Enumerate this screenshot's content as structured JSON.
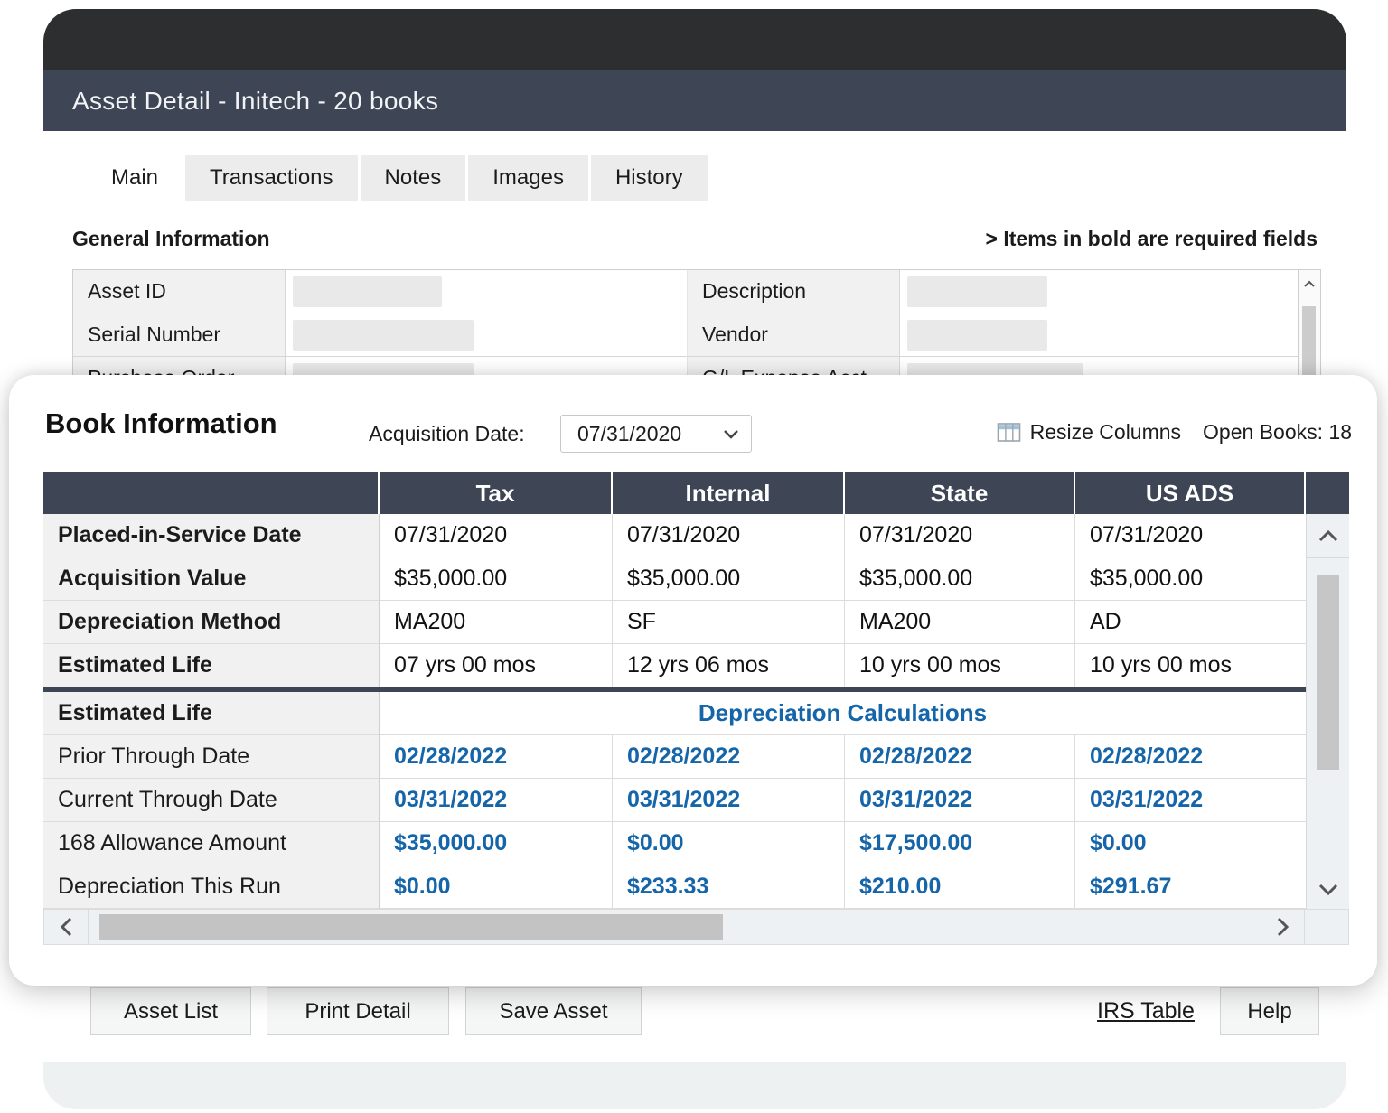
{
  "window": {
    "title": "Asset Detail - Initech - 20 books"
  },
  "tabs": [
    {
      "label": "Main",
      "active": true
    },
    {
      "label": "Transactions",
      "active": false
    },
    {
      "label": "Notes",
      "active": false
    },
    {
      "label": "Images",
      "active": false
    },
    {
      "label": "History",
      "active": false
    }
  ],
  "general": {
    "heading": "General Information",
    "required_note": "> Items in bold are required fields",
    "rows": [
      {
        "left_label": "Asset ID",
        "right_label": "Description"
      },
      {
        "left_label": "Serial Number",
        "right_label": "Vendor"
      },
      {
        "left_label": "Purchase Order",
        "right_label": "G/L Expense Acct"
      }
    ]
  },
  "book": {
    "heading": "Book Information",
    "acquisition_date_label": "Acquisition Date:",
    "acquisition_date_value": "07/31/2020",
    "resize_columns_label": "Resize Columns",
    "open_books_label": "Open Books: 18",
    "table": {
      "columns": [
        "",
        "Tax",
        "Internal",
        "State",
        "US ADS"
      ],
      "rows": [
        {
          "label": "Placed-in-Service Date",
          "bold": true,
          "blue": false,
          "values": [
            "07/31/2020",
            "07/31/2020",
            "07/31/2020",
            "07/31/2020"
          ]
        },
        {
          "label": "Acquisition Value",
          "bold": true,
          "blue": false,
          "values": [
            "$35,000.00",
            "$35,000.00",
            "$35,000.00",
            "$35,000.00"
          ]
        },
        {
          "label": "Depreciation Method",
          "bold": true,
          "blue": false,
          "values": [
            "MA200",
            "SF",
            "MA200",
            "AD"
          ]
        },
        {
          "label": "Estimated Life",
          "bold": true,
          "blue": false,
          "values": [
            "07 yrs 00 mos",
            "12 yrs 06 mos",
            "10 yrs 00 mos",
            "10 yrs 00 mos"
          ]
        },
        {
          "label": "Estimated Life",
          "bold": true,
          "separator_before": true,
          "span": "Depreciation Calculations"
        },
        {
          "label": "Prior Through Date",
          "bold": false,
          "blue": true,
          "values": [
            "02/28/2022",
            "02/28/2022",
            "02/28/2022",
            "02/28/2022"
          ]
        },
        {
          "label": "Current Through Date",
          "bold": false,
          "blue": true,
          "values": [
            "03/31/2022",
            "03/31/2022",
            "03/31/2022",
            "03/31/2022"
          ]
        },
        {
          "label": "168 Allowance Amount",
          "bold": false,
          "blue": true,
          "values": [
            "$35,000.00",
            "$0.00",
            "$17,500.00",
            "$0.00"
          ]
        },
        {
          "label": "Depreciation This Run",
          "bold": false,
          "blue": true,
          "values": [
            "$0.00",
            "$233.33",
            "$210.00",
            "$291.67"
          ]
        }
      ]
    }
  },
  "footer_buttons": {
    "asset_list": "Asset List",
    "print_detail": "Print Detail",
    "save_asset": "Save Asset",
    "irs_table": "IRS Table",
    "help": "Help"
  },
  "colors": {
    "chrome_bar": "#2d2e30",
    "title_bar": "#3e4656",
    "table_header": "#3e4656",
    "accent_blue": "#1565a8",
    "label_cell_bg": "#f1f1f1",
    "footer_strip": "#edf1f2"
  }
}
